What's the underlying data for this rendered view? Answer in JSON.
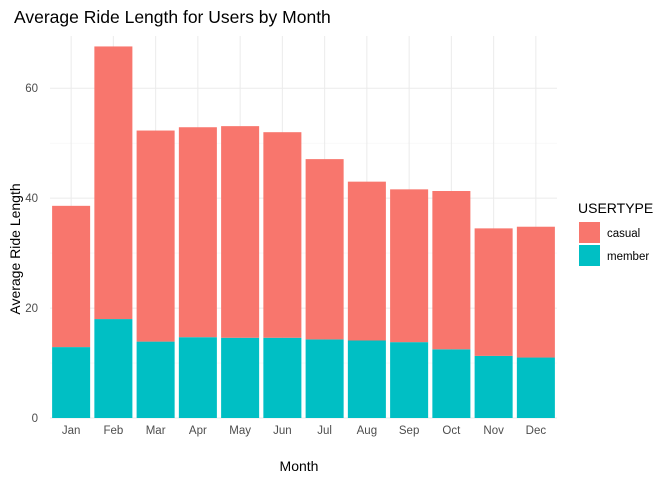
{
  "chart_data": {
    "type": "bar",
    "stacked": true,
    "title": "Average Ride Length for Users by Month",
    "xlabel": "Month",
    "ylabel": "Average Ride Length",
    "categories": [
      "Jan",
      "Feb",
      "Mar",
      "Apr",
      "May",
      "Jun",
      "Jul",
      "Aug",
      "Sep",
      "Oct",
      "Nov",
      "Dec"
    ],
    "series": [
      {
        "name": "casual",
        "color": "#F8766D",
        "values": [
          25.7,
          49.6,
          38.4,
          38.2,
          38.5,
          37.4,
          32.8,
          28.9,
          27.8,
          28.8,
          23.2,
          23.8
        ]
      },
      {
        "name": "member",
        "color": "#00BFC4",
        "values": [
          12.9,
          18.0,
          13.9,
          14.7,
          14.6,
          14.6,
          14.3,
          14.1,
          13.8,
          12.5,
          11.3,
          11.0
        ]
      }
    ],
    "ylim": [
      0,
      69.5
    ],
    "yticks": [
      0,
      20,
      40,
      60
    ],
    "grid": true,
    "legend": {
      "title": "USERTYPE",
      "position": "right",
      "entries": [
        "casual",
        "member"
      ]
    }
  }
}
